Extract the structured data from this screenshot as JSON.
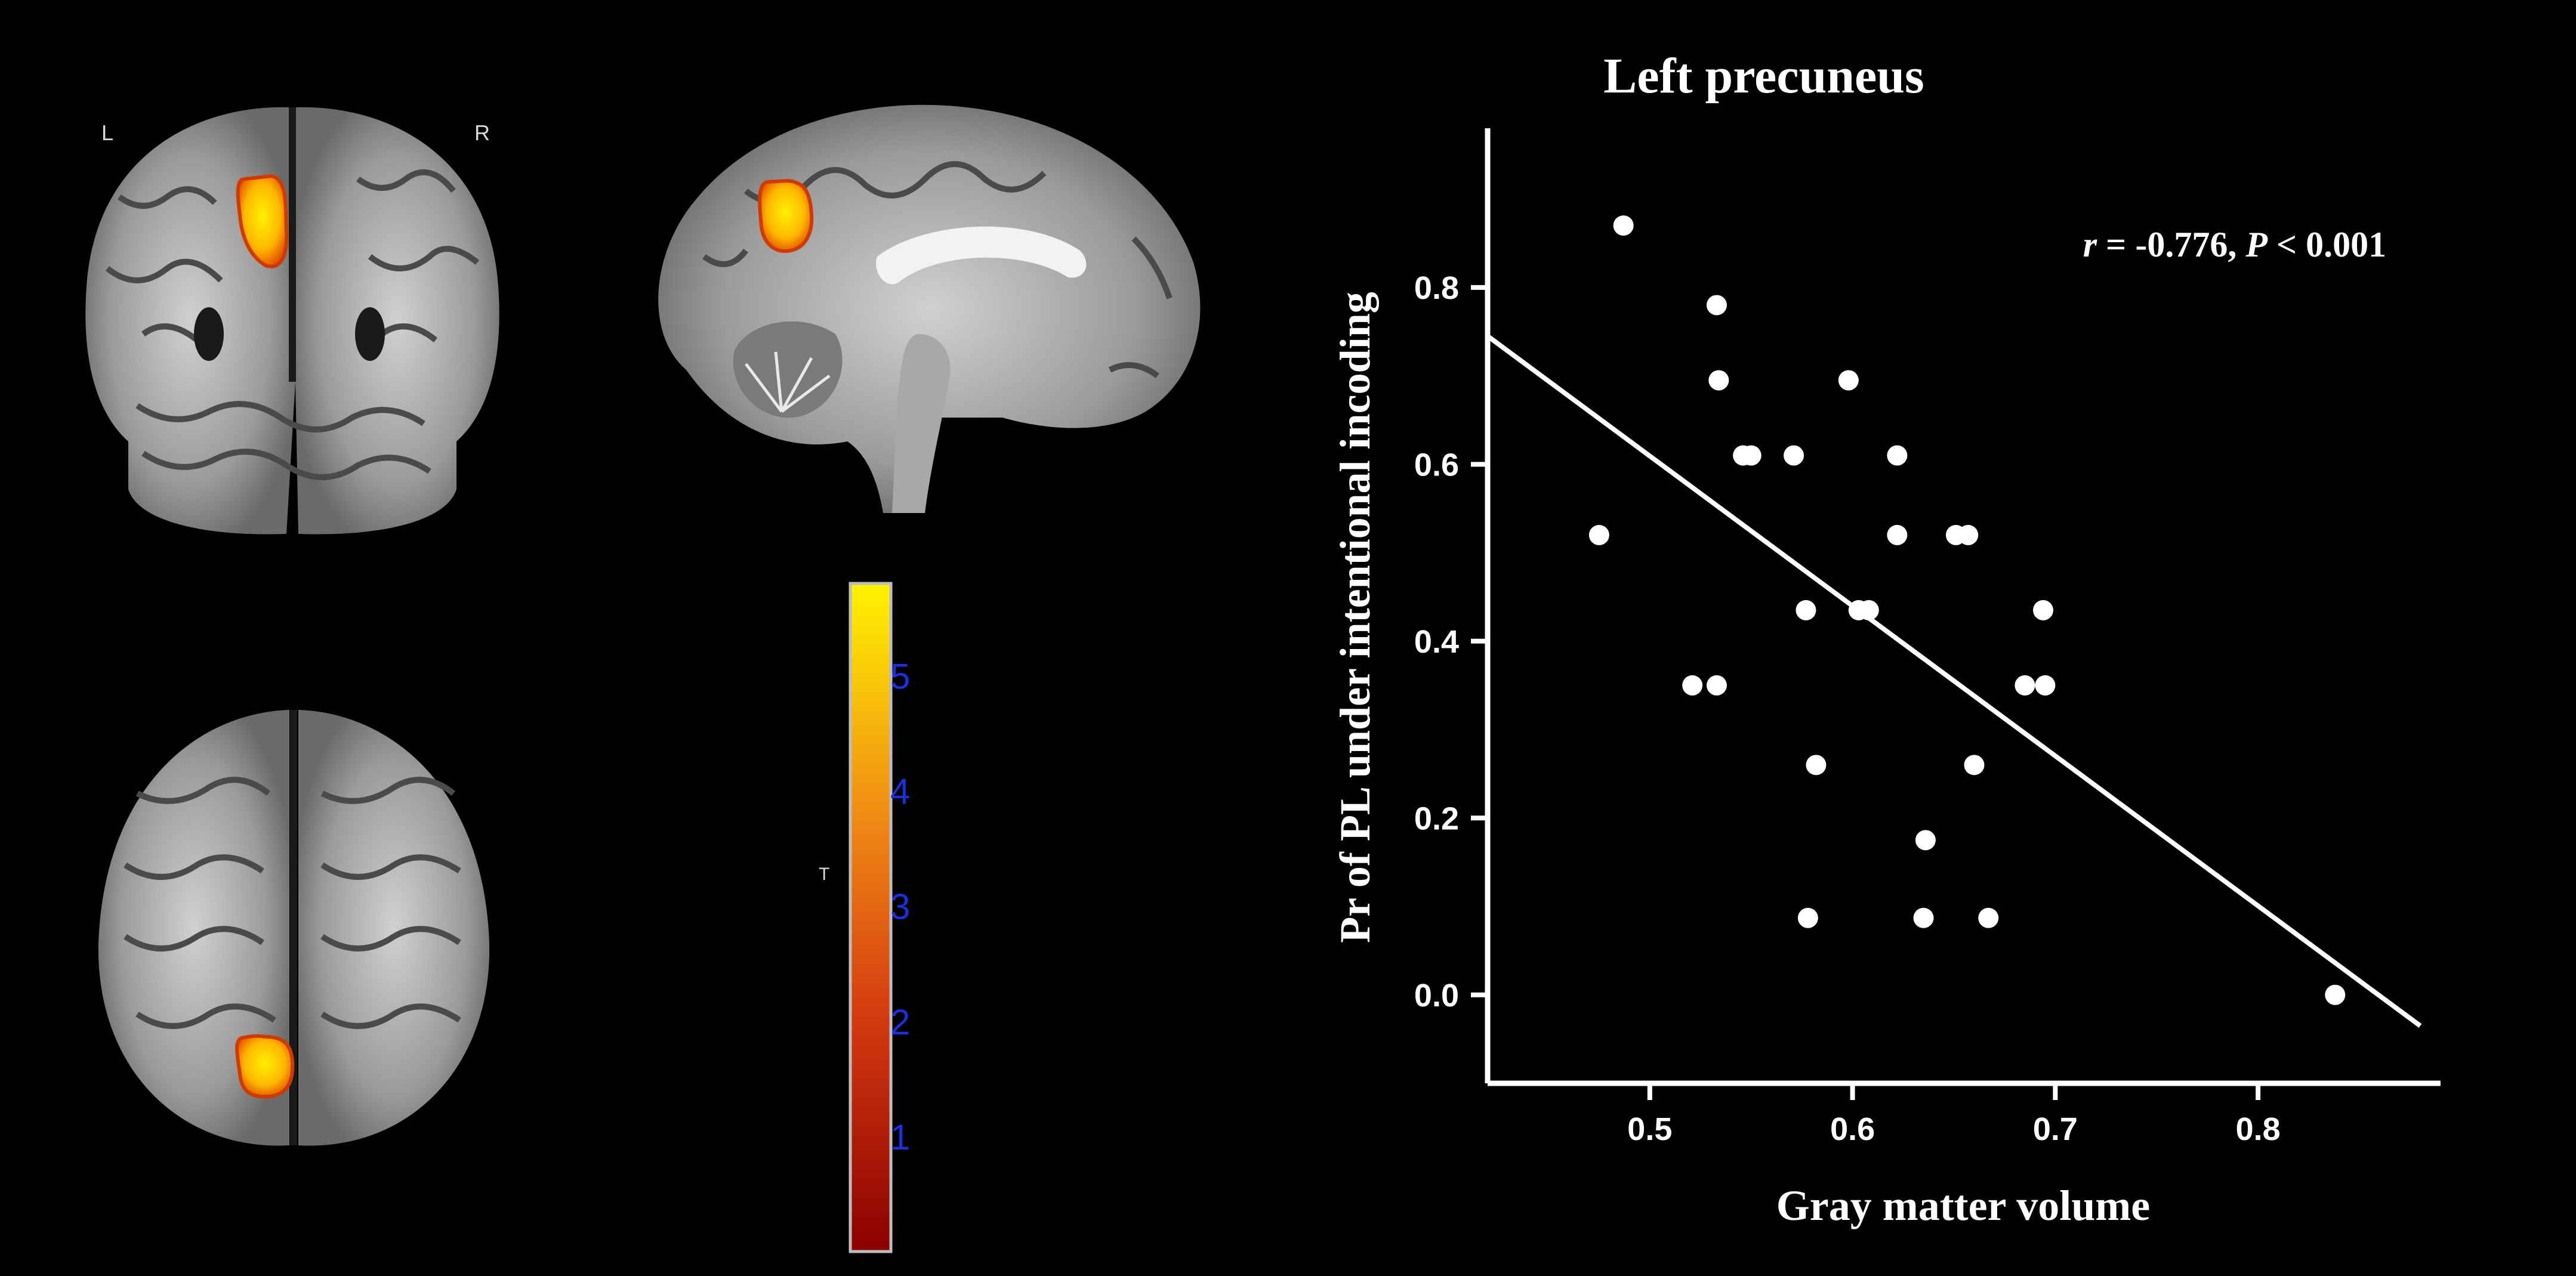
{
  "brain": {
    "coronal_left_label": "L",
    "coronal_right_label": "R",
    "colorbar": {
      "title": "T",
      "ticks": [
        1,
        2,
        3,
        4,
        5
      ],
      "range": [
        0,
        5.8
      ],
      "colors": {
        "low": "#8b0000",
        "mid": "#e25a12",
        "high": "#fff200"
      }
    }
  },
  "chart_data": {
    "type": "scatter",
    "title": "Left precuneus",
    "xlabel": "Gray matter volume",
    "ylabel": "Pr of PL under intentional incoding",
    "annotation": "r = -0.776, P < 0.001",
    "annotation_parts": {
      "r_symbol": "r",
      "r_value": " = -0.776, ",
      "p_symbol": "P",
      "p_value": " < 0.001"
    },
    "xlim": [
      0.42,
      0.89
    ],
    "ylim": [
      -0.1,
      0.98
    ],
    "xticks": [
      0.5,
      0.6,
      0.7,
      0.8
    ],
    "yticks": [
      0.0,
      0.2,
      0.4,
      0.6,
      0.8
    ],
    "xtick_labels": [
      "0.5",
      "0.6",
      "0.7",
      "0.8"
    ],
    "ytick_labels": [
      "0.0",
      "0.2",
      "0.4",
      "0.6",
      "0.8"
    ],
    "points": [
      {
        "x": 0.487,
        "y": 0.87
      },
      {
        "x": 0.475,
        "y": 0.52
      },
      {
        "x": 0.533,
        "y": 0.78
      },
      {
        "x": 0.534,
        "y": 0.695
      },
      {
        "x": 0.546,
        "y": 0.61
      },
      {
        "x": 0.55,
        "y": 0.61
      },
      {
        "x": 0.571,
        "y": 0.61
      },
      {
        "x": 0.598,
        "y": 0.695
      },
      {
        "x": 0.622,
        "y": 0.61
      },
      {
        "x": 0.622,
        "y": 0.52
      },
      {
        "x": 0.651,
        "y": 0.52
      },
      {
        "x": 0.657,
        "y": 0.52
      },
      {
        "x": 0.577,
        "y": 0.435
      },
      {
        "x": 0.603,
        "y": 0.435
      },
      {
        "x": 0.608,
        "y": 0.435
      },
      {
        "x": 0.694,
        "y": 0.435
      },
      {
        "x": 0.521,
        "y": 0.35
      },
      {
        "x": 0.533,
        "y": 0.35
      },
      {
        "x": 0.685,
        "y": 0.35
      },
      {
        "x": 0.695,
        "y": 0.35
      },
      {
        "x": 0.582,
        "y": 0.26
      },
      {
        "x": 0.66,
        "y": 0.26
      },
      {
        "x": 0.636,
        "y": 0.175
      },
      {
        "x": 0.578,
        "y": 0.087
      },
      {
        "x": 0.635,
        "y": 0.087
      },
      {
        "x": 0.667,
        "y": 0.087
      },
      {
        "x": 0.838,
        "y": 0.0
      }
    ],
    "fit_line": {
      "x": [
        0.42,
        0.88
      ],
      "y": [
        0.745,
        -0.035
      ]
    },
    "colors": {
      "marker": "#ffffff",
      "line": "#ffffff",
      "axes": "#ffffff",
      "background": "#000000"
    }
  }
}
